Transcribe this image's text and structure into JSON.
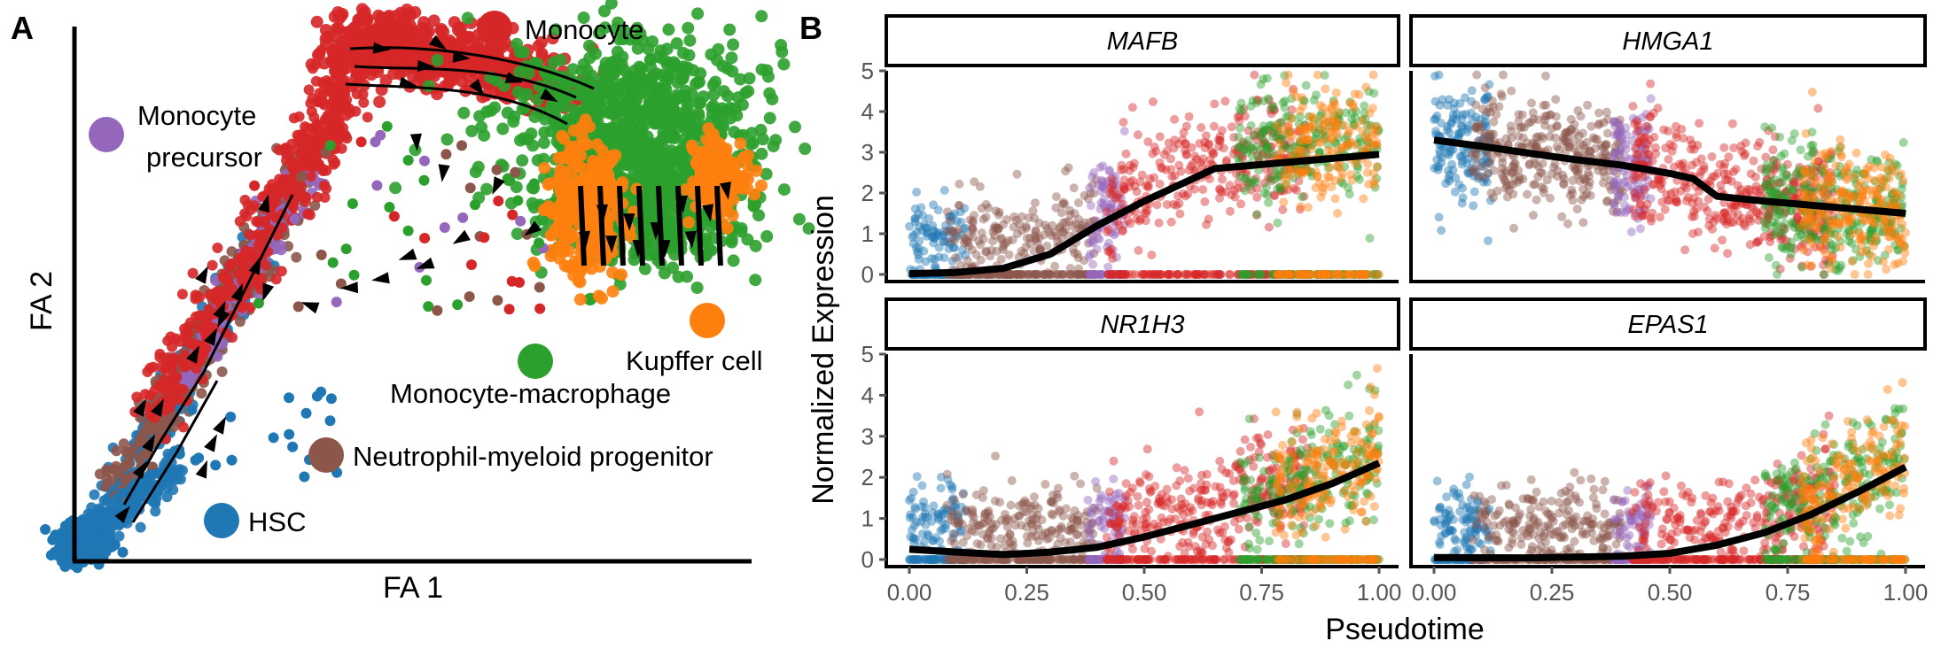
{
  "panel_a": {
    "letter": "A",
    "xlabel": "FA 1",
    "ylabel": "FA 2",
    "legend": [
      {
        "label": "Monocyte",
        "color": "#d62728"
      },
      {
        "label": "Monocyte",
        "label2": "precursor",
        "color": "#9467bd"
      },
      {
        "label": "Kupffer cell",
        "color": "#ff7f0e"
      },
      {
        "label": "Monocyte-macrophage",
        "color": "#2ca02c"
      },
      {
        "label": "Neutrophil-myeloid progenitor",
        "color": "#8c564b"
      },
      {
        "label": "HSC",
        "color": "#1f77b4"
      }
    ]
  },
  "panel_b": {
    "letter": "B",
    "ylabel": "Normalized Expression",
    "xlabel": "Pseudotime"
  },
  "chart_data": [
    {
      "type": "scatter",
      "panel": "A",
      "title": "",
      "xlabel": "FA 1",
      "ylabel": "FA 2",
      "grid": false,
      "series": [
        {
          "name": "HSC",
          "color": "#1f77b4",
          "region": "lower-left"
        },
        {
          "name": "Neutrophil-myeloid progenitor",
          "color": "#8c564b",
          "region": "diagonal arm"
        },
        {
          "name": "Monocyte precursor",
          "color": "#9467bd",
          "region": "upper diagonal arm"
        },
        {
          "name": "Monocyte",
          "color": "#d62728",
          "region": "top arc"
        },
        {
          "name": "Monocyte-macrophage",
          "color": "#2ca02c",
          "region": "upper right"
        },
        {
          "name": "Kupffer cell",
          "color": "#ff7f0e",
          "region": "right edge"
        }
      ]
    },
    {
      "type": "scatter",
      "panel": "B",
      "facets": [
        {
          "gene": "MAFB",
          "trend": [
            [
              0,
              0.02
            ],
            [
              0.1,
              0.05
            ],
            [
              0.2,
              0.15
            ],
            [
              0.3,
              0.5
            ],
            [
              0.4,
              1.2
            ],
            [
              0.5,
              1.8
            ],
            [
              0.65,
              2.6
            ],
            [
              0.8,
              2.75
            ],
            [
              1.0,
              2.95
            ]
          ]
        },
        {
          "gene": "HMGA1",
          "trend": [
            [
              0,
              3.3
            ],
            [
              0.1,
              3.15
            ],
            [
              0.2,
              2.98
            ],
            [
              0.3,
              2.82
            ],
            [
              0.4,
              2.68
            ],
            [
              0.5,
              2.48
            ],
            [
              0.55,
              2.35
            ],
            [
              0.6,
              1.92
            ],
            [
              0.7,
              1.8
            ],
            [
              0.8,
              1.7
            ],
            [
              0.9,
              1.6
            ],
            [
              1.0,
              1.5
            ]
          ]
        },
        {
          "gene": "NR1H3",
          "trend": [
            [
              0,
              0.25
            ],
            [
              0.1,
              0.18
            ],
            [
              0.2,
              0.12
            ],
            [
              0.3,
              0.18
            ],
            [
              0.4,
              0.3
            ],
            [
              0.5,
              0.55
            ],
            [
              0.6,
              0.85
            ],
            [
              0.7,
              1.15
            ],
            [
              0.8,
              1.45
            ],
            [
              0.9,
              1.85
            ],
            [
              1.0,
              2.35
            ]
          ]
        },
        {
          "gene": "EPAS1",
          "trend": [
            [
              0,
              0.05
            ],
            [
              0.2,
              0.04
            ],
            [
              0.4,
              0.08
            ],
            [
              0.5,
              0.15
            ],
            [
              0.6,
              0.35
            ],
            [
              0.7,
              0.65
            ],
            [
              0.8,
              1.1
            ],
            [
              0.9,
              1.65
            ],
            [
              1.0,
              2.25
            ]
          ]
        }
      ],
      "xlabel": "Pseudotime",
      "ylabel": "Normalized Expression",
      "xlim": [
        0,
        1
      ],
      "ylim": [
        0,
        5
      ],
      "xticks": [
        "0.00",
        "0.25",
        "0.50",
        "0.75",
        "1.00"
      ],
      "yticks": [
        "0",
        "1",
        "2",
        "3",
        "4",
        "5"
      ],
      "series": [
        {
          "name": "HSC",
          "color": "#1f77b4",
          "pseudotime": [
            0,
            0.12
          ]
        },
        {
          "name": "Neutrophil-myeloid progenitor",
          "color": "#8c564b",
          "pseudotime": [
            0.08,
            0.4
          ]
        },
        {
          "name": "Monocyte precursor",
          "color": "#9467bd",
          "pseudotime": [
            0.38,
            0.46
          ]
        },
        {
          "name": "Monocyte",
          "color": "#d62728",
          "pseudotime": [
            0.42,
            0.85
          ]
        },
        {
          "name": "Monocyte-macrophage",
          "color": "#2ca02c",
          "pseudotime": [
            0.7,
            1.0
          ]
        },
        {
          "name": "Kupffer cell",
          "color": "#ff7f0e",
          "pseudotime": [
            0.78,
            1.0
          ]
        }
      ]
    }
  ]
}
